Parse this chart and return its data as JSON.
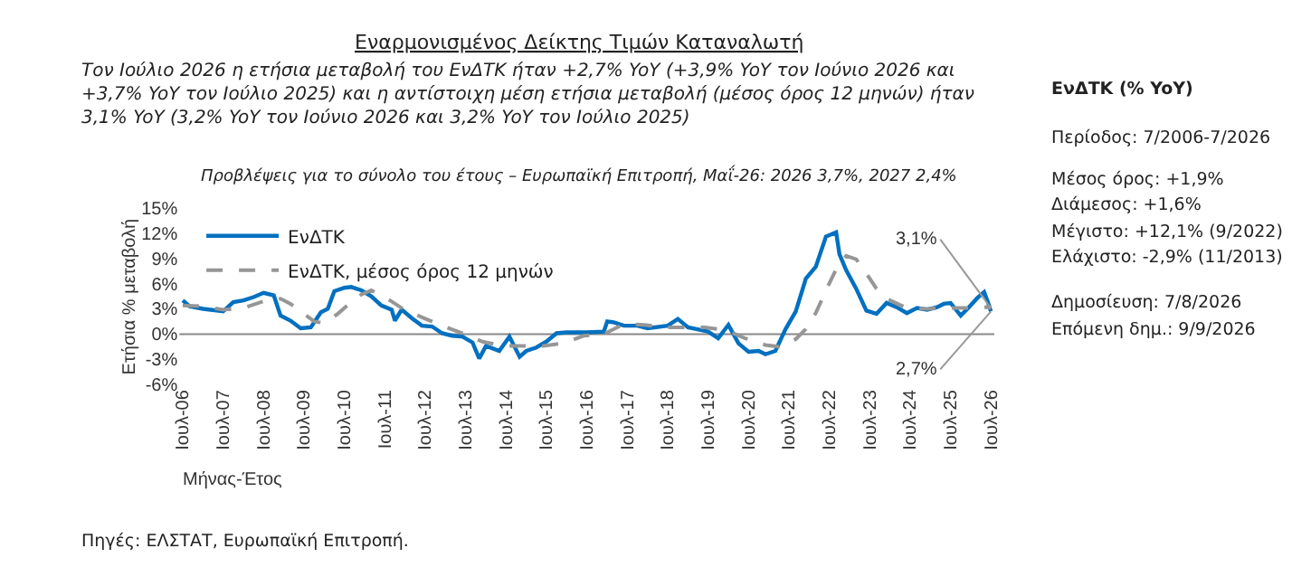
{
  "chart_data": {
    "type": "line",
    "title": "Εναρμονισμένος Δείκτης Τιμών Καταναλωτή",
    "subtitle": "Τον Ιούλιο 2026 η ετήσια μεταβολή του ΕνΔΤΚ ήταν +2,7% YoY (+3,9% YoY τον Ιούνιο 2026 και +3,7% YoY τον Ιούλιο 2025) και η αντίστοιχη μέση ετήσια μεταβολή (μέσος όρος 12 μηνών) ήταν 3,1% YoY (3,2% YoY τον Ιούνιο 2026 και 3,2% YoY τον Ιούλιο 2025)",
    "xlabel": "Μήνας-Έτος",
    "ylabel": "Ετήσια % μεταβολή",
    "series": [
      {
        "name": "ΕνΔΤΚ",
        "color": "#0070c0",
        "line_style": "solid",
        "x": [
          "2006-07",
          "2006-09",
          "2007-01",
          "2007-07",
          "2007-10",
          "2008-01",
          "2008-04",
          "2008-07",
          "2008-10",
          "2008-12",
          "2009-03",
          "2009-06",
          "2009-09",
          "2009-12",
          "2010-02",
          "2010-04",
          "2010-07",
          "2010-09",
          "2010-12",
          "2011-03",
          "2011-06",
          "2011-09",
          "2011-10",
          "2011-12",
          "2012-03",
          "2012-06",
          "2012-09",
          "2012-12",
          "2013-03",
          "2013-06",
          "2013-09",
          "2013-11",
          "2014-01",
          "2014-05",
          "2014-08",
          "2014-11",
          "2015-01",
          "2015-04",
          "2015-07",
          "2015-10",
          "2016-01",
          "2016-07",
          "2016-12",
          "2017-01",
          "2017-03",
          "2017-06",
          "2017-10",
          "2018-01",
          "2018-07",
          "2018-10",
          "2019-01",
          "2019-07",
          "2019-10",
          "2020-01",
          "2020-04",
          "2020-07",
          "2020-10",
          "2020-12",
          "2021-03",
          "2021-06",
          "2021-09",
          "2021-12",
          "2022-03",
          "2022-06",
          "2022-09",
          "2022-10",
          "2022-12",
          "2023-03",
          "2023-06",
          "2023-09",
          "2023-12",
          "2024-03",
          "2024-06",
          "2024-09",
          "2024-12",
          "2025-03",
          "2025-05",
          "2025-07",
          "2025-10",
          "2025-12",
          "2026-03",
          "2026-05",
          "2026-06",
          "2026-07"
        ],
        "values": [
          4.0,
          3.3,
          3.0,
          2.7,
          3.8,
          4.0,
          4.4,
          4.9,
          4.6,
          2.2,
          1.6,
          0.7,
          0.8,
          2.6,
          3.0,
          5.1,
          5.5,
          5.6,
          5.2,
          4.5,
          3.4,
          2.9,
          1.6,
          2.9,
          1.9,
          1.0,
          0.9,
          0.1,
          -0.2,
          -0.3,
          -1.0,
          -2.9,
          -1.4,
          -2.0,
          -0.3,
          -2.7,
          -2.0,
          -1.6,
          -0.9,
          0.1,
          0.2,
          0.2,
          0.3,
          1.5,
          1.4,
          1.0,
          1.0,
          0.7,
          1.0,
          1.8,
          0.8,
          0.3,
          -0.5,
          1.1,
          -1.1,
          -2.1,
          -2.0,
          -2.4,
          -2.0,
          0.6,
          2.7,
          6.6,
          8.0,
          11.6,
          12.1,
          9.5,
          7.6,
          5.4,
          2.8,
          2.4,
          3.7,
          3.2,
          2.5,
          3.1,
          2.9,
          3.2,
          3.6,
          3.7,
          2.2,
          3.0,
          4.3,
          5.0,
          3.9,
          2.7
        ]
      },
      {
        "name": "ΕνΔΤΚ, μέσος όρος 12 μηνών",
        "color": "#969696",
        "line_style": "dashed",
        "x": [
          "2006-07",
          "2007-01",
          "2007-07",
          "2008-01",
          "2008-07",
          "2008-12",
          "2009-03",
          "2009-07",
          "2009-10",
          "2010-01",
          "2010-05",
          "2010-09",
          "2010-12",
          "2011-03",
          "2011-07",
          "2011-12",
          "2012-06",
          "2012-12",
          "2013-06",
          "2013-12",
          "2014-06",
          "2014-12",
          "2015-06",
          "2015-12",
          "2016-06",
          "2016-12",
          "2017-06",
          "2017-12",
          "2018-06",
          "2018-12",
          "2019-06",
          "2019-12",
          "2020-06",
          "2020-12",
          "2021-04",
          "2021-09",
          "2021-12",
          "2022-03",
          "2022-06",
          "2022-09",
          "2022-12",
          "2023-03",
          "2023-06",
          "2023-09",
          "2023-12",
          "2024-06",
          "2024-12",
          "2025-06",
          "2025-12",
          "2026-06",
          "2026-07"
        ],
        "values": [
          3.4,
          3.3,
          2.9,
          3.1,
          3.9,
          4.2,
          3.6,
          2.4,
          1.5,
          1.3,
          2.4,
          3.8,
          4.7,
          5.2,
          4.4,
          3.1,
          2.0,
          1.0,
          0.1,
          -0.9,
          -1.4,
          -1.4,
          -1.4,
          -1.1,
          -0.2,
          0.0,
          1.2,
          1.1,
          0.8,
          0.8,
          0.8,
          0.5,
          -0.5,
          -1.3,
          -1.5,
          -0.6,
          0.6,
          2.5,
          5.2,
          7.7,
          9.3,
          8.9,
          7.2,
          5.4,
          4.2,
          3.1,
          3.0,
          3.1,
          3.1,
          3.2,
          3.1
        ]
      }
    ],
    "xlim": [
      "2006-06",
      "2026-08"
    ],
    "xticks": [
      {
        "value": "2006-07",
        "label": "Ιουλ-06"
      },
      {
        "value": "2007-07",
        "label": "Ιουλ-07"
      },
      {
        "value": "2008-07",
        "label": "Ιουλ-08"
      },
      {
        "value": "2009-07",
        "label": "Ιουλ-09"
      },
      {
        "value": "2010-07",
        "label": "Ιουλ-10"
      },
      {
        "value": "2011-07",
        "label": "Ιουλ-11"
      },
      {
        "value": "2012-07",
        "label": "Ιουλ-12"
      },
      {
        "value": "2013-07",
        "label": "Ιουλ-13"
      },
      {
        "value": "2014-07",
        "label": "Ιουλ-14"
      },
      {
        "value": "2015-07",
        "label": "Ιουλ-15"
      },
      {
        "value": "2016-07",
        "label": "Ιουλ-16"
      },
      {
        "value": "2017-07",
        "label": "Ιουλ-17"
      },
      {
        "value": "2018-07",
        "label": "Ιουλ-18"
      },
      {
        "value": "2019-07",
        "label": "Ιουλ-19"
      },
      {
        "value": "2020-07",
        "label": "Ιουλ-20"
      },
      {
        "value": "2021-07",
        "label": "Ιουλ-21"
      },
      {
        "value": "2022-07",
        "label": "Ιουλ-22"
      },
      {
        "value": "2023-07",
        "label": "Ιουλ-23"
      },
      {
        "value": "2024-07",
        "label": "Ιουλ-24"
      },
      {
        "value": "2025-07",
        "label": "Ιουλ-25"
      },
      {
        "value": "2026-07",
        "label": "Ιουλ-26"
      }
    ],
    "ylim": [
      -6,
      15
    ],
    "yticks": [
      {
        "value": -6,
        "label": "-6%"
      },
      {
        "value": -3,
        "label": "-3%"
      },
      {
        "value": 0,
        "label": "0%"
      },
      {
        "value": 3,
        "label": "3%"
      },
      {
        "value": 6,
        "label": "6%"
      },
      {
        "value": 9,
        "label": "9%"
      },
      {
        "value": 12,
        "label": "12%"
      },
      {
        "value": 15,
        "label": "15%"
      }
    ],
    "ref_lines": [
      {
        "axis": "y",
        "value": 0,
        "color": "#888888",
        "line_style": "solid"
      }
    ],
    "legend": "top left",
    "marker": "none",
    "annotations": [
      "Προβλέψεις για το σύνολο του έτους – Ευρωπαϊκή Επιτροπή, Μαΐ-26: 2026 3,7%, 2027 2,4%",
      "ΕνΔΤΚ (% YoY)",
      "Περίοδος: 7/2006-7/2026",
      "Μέσος όρος: +1,9%",
      "Διάμεσος: +1,6%",
      "Μέγιστο: +12,1% (9/2022)",
      "Ελάχιστο: -2,9% (11/2013)",
      "Δημοσίευση: 7/8/2026",
      "Επόμενη δημ.: 9/9/2026",
      "Πηγές: ΕΛΣΤΑΤ, Ευρωπαϊκή Επιτροπή.",
      {
        "text": "3,1%",
        "x": "2026-07",
        "y": 3.1
      },
      {
        "text": "2,7%",
        "x": "2026-07",
        "y": 2.7
      }
    ]
  }
}
